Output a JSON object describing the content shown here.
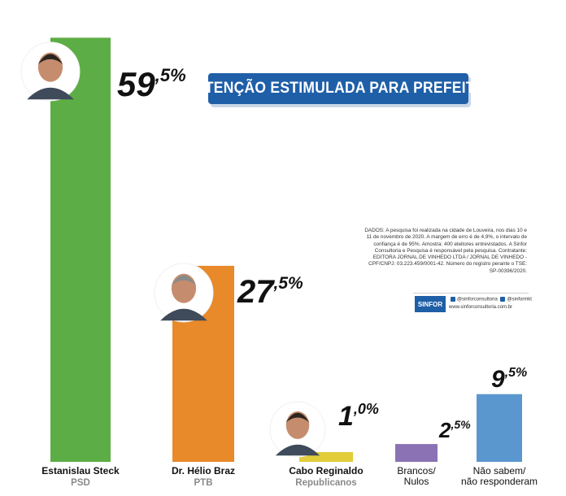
{
  "chart_data": {
    "type": "bar",
    "title": "INTENÇÃO ESTIMULADA PARA PREFEITO",
    "ylim": [
      0,
      60
    ],
    "grid": false,
    "legend": "none",
    "bars": [
      {
        "name": "Estanislau Steck",
        "party": "PSD",
        "value": 59.5,
        "label_main": "59",
        "label_frac": ",5%",
        "color": "#5cad45",
        "photo": true
      },
      {
        "name": "Dr. Hélio Braz",
        "party": "PTB",
        "value": 27.5,
        "label_main": "27",
        "label_frac": ",5%",
        "color": "#e8892a",
        "photo": true
      },
      {
        "name": "Cabo Reginaldo",
        "party": "Republicanos",
        "value": 1.0,
        "label_main": "1",
        "label_frac": ",0%",
        "color": "#e2cc3a",
        "photo": true
      },
      {
        "name": "Brancos/\nNulos",
        "party": "",
        "value": 2.5,
        "label_main": "2",
        "label_frac": ",5%",
        "color": "#8b72b4",
        "photo": false
      },
      {
        "name": "Não sabem/\nnão responderam",
        "party": "",
        "value": 9.5,
        "label_main": "9",
        "label_frac": ",5%",
        "color": "#5b97cf",
        "photo": false
      }
    ]
  },
  "methodology": "DADOS: A pesquisa foi realizada na cidade de Louveira, nos dias 10 e 11 de novembro de 2020. A margem de erro é de 4,9%, o intervalo de confiança é de 95%. Amostra: 400 eleitores entrevistados. A Sinfor Consultoria e Pesquisa é responsável pela pesquisa. Contratante: EDITORA JORNAL DE VINHEDO LTDA / JORNAL DE VINHEDO - CPF/CNPJ: 03.223.459/0001-42. Número do registro perante o TSE: SP-00396/2020.",
  "brand": {
    "logo": "SINFOR",
    "social": "@sinforconsultoria",
    "social2": "@sinformkt",
    "site": "www.sinforconsultoria.com.br",
    "accent": "#1f5fa8"
  }
}
